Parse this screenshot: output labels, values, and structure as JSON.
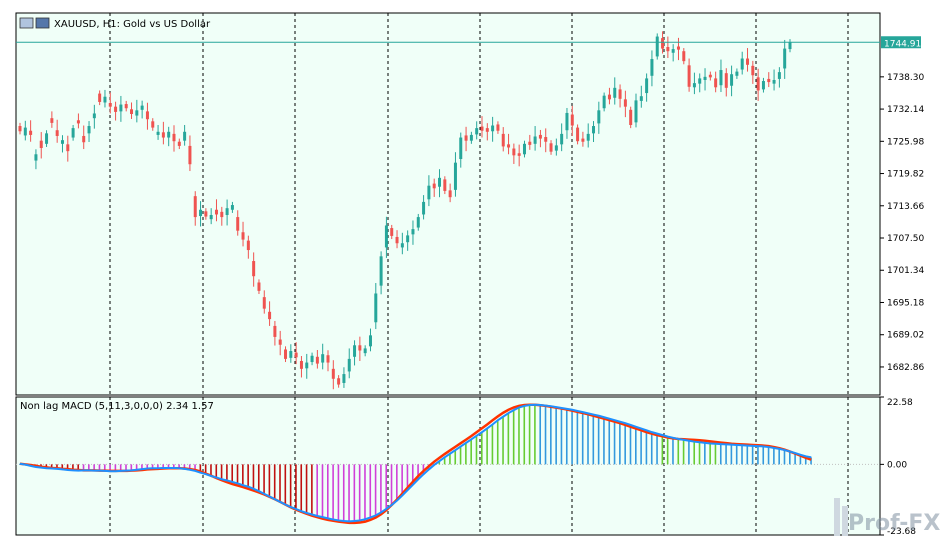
{
  "window": {
    "symbol_caption": "XAUUSD, H1:  Gold vs US Dollar",
    "indicator_caption": "Non lag MACD (5,11,3,0,0,0) 2.34 1.57",
    "watermark": "Prof-FX"
  },
  "colors": {
    "background": "#f0fff8",
    "grid": "#000000",
    "bull_candle": "#26a69a",
    "bear_candle": "#ef5350",
    "price_line": "#26a69a",
    "price_label_bg": "#26a69a",
    "hist_red": "#c01010",
    "hist_magenta": "#d040d8",
    "hist_green": "#66cc33",
    "hist_blue": "#3399dd",
    "macd_blue": "#1e90ff",
    "signal_orange": "#ff3300"
  },
  "chart_data": [
    {
      "type": "candlestick",
      "title": "XAUUSD, H1:  Gold vs US Dollar",
      "ylim": [
        1677.5,
        1750.5
      ],
      "y_ticks": [
        "1744.91",
        "1738.30",
        "1732.14",
        "1725.98",
        "1719.82",
        "1713.66",
        "1707.50",
        "1701.34",
        "1695.18",
        "1689.02",
        "1682.86"
      ],
      "current_price": 1744.91,
      "close": [
        1727.9,
        1728.6,
        1727.2,
        1723.5,
        1724.7,
        1727.5,
        1729.5,
        1727.0,
        1726.2,
        1724.1,
        1728.5,
        1729.4,
        1725.8,
        1728.9,
        1731.3,
        1733.5,
        1734.5,
        1732.6,
        1731.6,
        1733.0,
        1732.3,
        1731.2,
        1731.9,
        1732.8,
        1730.2,
        1728.6,
        1727.8,
        1726.7,
        1727.8,
        1726.0,
        1725.1,
        1727.8,
        1721.6,
        1711.5,
        1712.9,
        1711.6,
        1711.9,
        1712.0,
        1711.5,
        1713.2,
        1713.8,
        1708.9,
        1707.2,
        1705.2,
        1700.2,
        1697.4,
        1694.0,
        1692.0,
        1688.6,
        1687.1,
        1684.4,
        1685.9,
        1684.7,
        1682.5,
        1683.7,
        1685.0,
        1683.5,
        1685.3,
        1683.7,
        1680.6,
        1679.5,
        1681.5,
        1684.4,
        1687.0,
        1686.0,
        1686.4,
        1688.9,
        1696.9,
        1704.0,
        1709.9,
        1707.9,
        1706.5,
        1706.5,
        1708.0,
        1709.2,
        1711.5,
        1714.4,
        1717.5,
        1717.0,
        1719.0,
        1716.5,
        1715.3,
        1721.9,
        1726.7,
        1726.1,
        1727.2,
        1728.5,
        1728.0,
        1727.8,
        1729.0,
        1728.0,
        1725.0,
        1724.8,
        1723.3,
        1723.2,
        1725.5,
        1725.3,
        1726.9,
        1726.5,
        1725.9,
        1724.0,
        1725.2,
        1727.4,
        1731.4,
        1729.0,
        1726.0,
        1725.9,
        1727.4,
        1728.9,
        1731.9,
        1734.7,
        1734.0,
        1736.2,
        1734.1,
        1732.6,
        1729.1,
        1733.8,
        1734.6,
        1738.0,
        1741.7,
        1746.0,
        1743.7,
        1743.2,
        1743.6,
        1743.5,
        1741.3,
        1736.4,
        1737.1,
        1738.0,
        1738.3,
        1738.2,
        1736.3,
        1739.6,
        1736.2,
        1738.8,
        1739.3,
        1741.8,
        1740.6,
        1738.6,
        1735.7,
        1737.5,
        1737.3,
        1737.7,
        1739.2,
        1743.7,
        1744.91
      ],
      "open_offset": [
        1.0,
        -1.5,
        0.8,
        -1.2,
        1.4,
        -2.0,
        0.9,
        1.1,
        -0.7,
        1.3,
        -1.8,
        0.6,
        1.2,
        -1.4,
        -0.9,
        1.6,
        -1.1,
        0.7,
        1.0,
        -1.3,
        0.8,
        0.9,
        -1.0,
        -0.8,
        1.5,
        1.2,
        -0.6,
        1.0,
        -1.1,
        1.4,
        0.8,
        -1.7,
        3.5,
        4.0,
        -1.2,
        1.0,
        -0.8,
        0.9,
        1.0,
        -1.3,
        -0.9,
        2.6,
        1.4,
        1.8,
        2.9,
        1.6,
        2.2,
        1.4,
        2.1,
        1.0,
        1.8,
        -1.3,
        0.9,
        1.5,
        -1.1,
        -1.2,
        1.3,
        -1.6,
        1.4,
        1.9,
        1.2,
        -1.7,
        -2.4,
        -2.2,
        1.0,
        -0.9,
        -2.1,
        -5.5,
        -5.6,
        -4.2,
        1.5,
        1.2,
        -0.8,
        -1.3,
        -1.0,
        -2.0,
        -2.4,
        -2.6,
        0.9,
        -1.7,
        2.2,
        1.3,
        -5.2,
        -4.1,
        1.0,
        -1.1,
        -1.2,
        0.8,
        0.7,
        -1.1,
        1.2,
        2.4,
        0.6,
        1.3,
        0.5,
        -2.0,
        0.6,
        -1.4,
        0.7,
        0.9,
        1.6,
        -1.0,
        -2.0,
        -3.3,
        2.1,
        2.6,
        0.6,
        -1.3,
        -1.4,
        -2.5,
        -2.4,
        0.9,
        -1.9,
        1.8,
        1.4,
        2.9,
        -4.2,
        -0.9,
        -2.8,
        -3.2,
        -3.8,
        2.0,
        0.8,
        -0.7,
        0.6,
        1.9,
        4.1,
        -0.8,
        -1.0,
        -0.6,
        0.5,
        1.7,
        -2.9,
        2.8,
        -2.2,
        -0.8,
        -2.1,
        1.2,
        1.8,
        2.5,
        -1.6,
        0.6,
        -0.7,
        -1.3,
        -3.8,
        -1.3
      ],
      "range_units": "price"
    },
    {
      "type": "bar+line",
      "title": "Non lag MACD (5,11,3,0,0,0) 2.34 1.57",
      "ylim": [
        -23.68,
        22.58
      ],
      "y_ticks": [
        "22.58",
        "0.00",
        "-23.68"
      ],
      "macd_last": 2.34,
      "signal_last": 1.57,
      "macd": [
        0.2,
        -0.1,
        -0.5,
        -0.9,
        -1.1,
        -1.3,
        -1.4,
        -1.5,
        -1.7,
        -1.9,
        -2.0,
        -2.1,
        -2.0,
        -2.0,
        -2.1,
        -2.1,
        -2.2,
        -2.3,
        -2.3,
        -2.2,
        -2.1,
        -2.0,
        -1.8,
        -1.6,
        -1.4,
        -1.3,
        -1.3,
        -1.2,
        -1.2,
        -1.2,
        -1.3,
        -1.5,
        -1.8,
        -2.2,
        -2.8,
        -3.3,
        -3.9,
        -4.4,
        -5.0,
        -5.4,
        -5.9,
        -6.4,
        -7.0,
        -7.5,
        -8.2,
        -9.0,
        -9.9,
        -10.8,
        -11.7,
        -12.6,
        -13.5,
        -14.3,
        -15.0,
        -15.7,
        -16.3,
        -16.8,
        -17.3,
        -17.7,
        -18.1,
        -18.5,
        -18.8,
        -19.0,
        -19.1,
        -19.0,
        -18.8,
        -18.4,
        -17.8,
        -17.1,
        -16.1,
        -14.9,
        -13.6,
        -12.1,
        -10.4,
        -8.6,
        -6.8,
        -5.0,
        -3.3,
        -1.7,
        -0.2,
        1.1,
        2.4,
        3.6,
        4.8,
        6.0,
        7.2,
        8.4,
        9.6,
        10.8,
        12.1,
        13.4,
        14.8,
        16.0,
        17.2,
        18.2,
        19.1,
        19.6,
        19.9,
        20.0,
        19.9,
        19.7,
        19.5,
        19.2,
        18.9,
        18.6,
        18.3,
        17.9,
        17.5,
        17.1,
        16.7,
        16.3,
        15.8,
        15.3,
        14.8,
        14.3,
        13.8,
        13.2,
        12.6,
        12.0,
        11.4,
        10.8,
        10.3,
        9.8,
        9.3,
        8.9,
        8.5,
        8.2,
        7.9,
        7.6,
        7.4,
        7.2,
        7.0,
        6.9,
        6.8,
        6.7,
        6.6,
        6.5,
        6.4,
        6.3,
        6.2,
        6.1,
        6.0,
        5.8,
        5.5,
        5.2,
        4.8,
        4.3,
        3.8,
        3.2,
        2.7,
        2.34
      ],
      "signal": [
        0.2,
        0.0,
        -0.2,
        -0.5,
        -0.8,
        -1.0,
        -1.2,
        -1.3,
        -1.5,
        -1.6,
        -1.8,
        -1.9,
        -2.0,
        -2.0,
        -2.0,
        -2.1,
        -2.1,
        -2.2,
        -2.2,
        -2.2,
        -2.2,
        -2.1,
        -2.0,
        -1.9,
        -1.7,
        -1.6,
        -1.5,
        -1.4,
        -1.3,
        -1.3,
        -1.3,
        -1.4,
        -1.6,
        -1.9,
        -2.4,
        -3.1,
        -3.8,
        -4.6,
        -5.3,
        -6.0,
        -6.6,
        -7.1,
        -7.6,
        -8.2,
        -8.8,
        -9.4,
        -10.1,
        -10.9,
        -11.7,
        -12.6,
        -13.5,
        -14.4,
        -15.2,
        -15.9,
        -16.6,
        -17.2,
        -17.7,
        -18.2,
        -18.6,
        -18.9,
        -19.2,
        -19.4,
        -19.6,
        -19.6,
        -19.5,
        -19.2,
        -18.6,
        -17.8,
        -16.7,
        -15.3,
        -13.6,
        -11.8,
        -9.8,
        -7.8,
        -5.8,
        -3.9,
        -2.2,
        -0.6,
        0.9,
        2.2,
        3.5,
        4.7,
        5.9,
        7.1,
        8.3,
        9.5,
        10.8,
        12.1,
        13.4,
        14.8,
        16.1,
        17.3,
        18.3,
        19.1,
        19.6,
        19.9,
        20.0,
        20.0,
        19.8,
        19.6,
        19.3,
        19.0,
        18.7,
        18.4,
        18.0,
        17.6,
        17.2,
        16.8,
        16.3,
        15.8,
        15.3,
        14.8,
        14.3,
        13.8,
        13.2,
        12.6,
        12.0,
        11.4,
        10.8,
        10.3,
        9.8,
        9.4,
        9.0,
        8.7,
        8.5,
        8.4,
        8.3,
        8.2,
        8.1,
        7.9,
        7.7,
        7.5,
        7.3,
        7.1,
        6.9,
        6.8,
        6.7,
        6.6,
        6.5,
        6.4,
        6.3,
        6.1,
        5.8,
        5.4,
        4.9,
        4.3,
        3.6,
        2.9,
        2.2,
        1.57
      ],
      "hist_colors_note": "histogram bars drawn from macd values; color per phase"
    }
  ]
}
